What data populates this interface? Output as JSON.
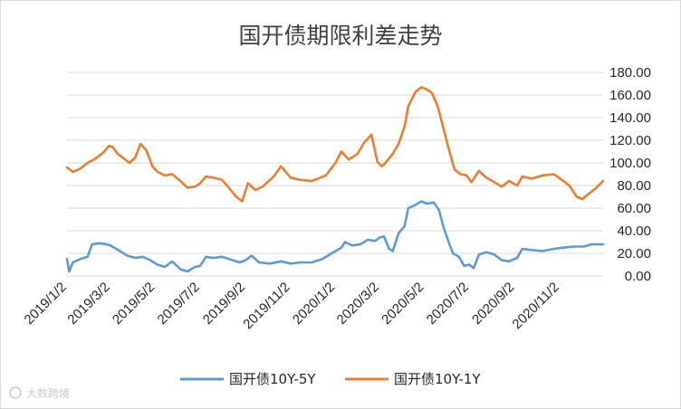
{
  "chart_data": {
    "type": "line",
    "title": "国开债期限利差走势",
    "xlabel": "",
    "ylabel": "",
    "ylim": [
      0,
      180
    ],
    "y_ticks": [
      "0.00",
      "20.00",
      "40.00",
      "60.00",
      "80.00",
      "100.00",
      "120.00",
      "140.00",
      "160.00",
      "180.00"
    ],
    "x_ticks": [
      "2019/1/2",
      "2019/3/2",
      "2019/5/2",
      "2019/7/2",
      "2019/9/2",
      "2019/11/2",
      "2020/1/2",
      "2020/3/2",
      "2020/5/2",
      "2020/7/2",
      "2020/9/2",
      "2020/11/2"
    ],
    "x_range": [
      "2019/1/2",
      "2020/12/31"
    ],
    "grid": true,
    "legend_position": "bottom",
    "series": [
      {
        "name": "国开债10Y-5Y",
        "color": "#5b9bd5",
        "points": [
          [
            "2019/1/2",
            15
          ],
          [
            "2019/1/5",
            4
          ],
          [
            "2019/1/10",
            12
          ],
          [
            "2019/1/20",
            15
          ],
          [
            "2019/1/30",
            17
          ],
          [
            "2019/2/5",
            28
          ],
          [
            "2019/2/15",
            29
          ],
          [
            "2019/2/25",
            28
          ],
          [
            "2019/3/2",
            27
          ],
          [
            "2019/3/15",
            22
          ],
          [
            "2019/3/25",
            18
          ],
          [
            "2019/4/5",
            16
          ],
          [
            "2019/4/15",
            17
          ],
          [
            "2019/4/25",
            14
          ],
          [
            "2019/5/5",
            10
          ],
          [
            "2019/5/15",
            8
          ],
          [
            "2019/5/25",
            13
          ],
          [
            "2019/6/5",
            6
          ],
          [
            "2019/6/15",
            4
          ],
          [
            "2019/6/25",
            8
          ],
          [
            "2019/7/2",
            9
          ],
          [
            "2019/7/10",
            17
          ],
          [
            "2019/7/20",
            16
          ],
          [
            "2019/8/1",
            17
          ],
          [
            "2019/8/15",
            14
          ],
          [
            "2019/8/25",
            12
          ],
          [
            "2019/9/2",
            14
          ],
          [
            "2019/9/10",
            18
          ],
          [
            "2019/9/20",
            12
          ],
          [
            "2019/10/5",
            11
          ],
          [
            "2019/10/20",
            13
          ],
          [
            "2019/11/2",
            11
          ],
          [
            "2019/11/15",
            12
          ],
          [
            "2019/12/1",
            12
          ],
          [
            "2019/12/15",
            15
          ],
          [
            "2020/1/2",
            22
          ],
          [
            "2020/1/10",
            25
          ],
          [
            "2020/1/15",
            30
          ],
          [
            "2020/1/25",
            27
          ],
          [
            "2020/2/5",
            28
          ],
          [
            "2020/2/15",
            32
          ],
          [
            "2020/2/25",
            31
          ],
          [
            "2020/3/2",
            34
          ],
          [
            "2020/3/8",
            35
          ],
          [
            "2020/3/15",
            24
          ],
          [
            "2020/3/20",
            22
          ],
          [
            "2020/3/28",
            38
          ],
          [
            "2020/4/5",
            44
          ],
          [
            "2020/4/10",
            60
          ],
          [
            "2020/4/20",
            63
          ],
          [
            "2020/4/28",
            66
          ],
          [
            "2020/5/5",
            64
          ],
          [
            "2020/5/15",
            65
          ],
          [
            "2020/5/22",
            58
          ],
          [
            "2020/5/28",
            43
          ],
          [
            "2020/6/5",
            28
          ],
          [
            "2020/6/10",
            20
          ],
          [
            "2020/6/18",
            17
          ],
          [
            "2020/6/25",
            9
          ],
          [
            "2020/7/2",
            10
          ],
          [
            "2020/7/8",
            7
          ],
          [
            "2020/7/15",
            19
          ],
          [
            "2020/7/25",
            21
          ],
          [
            "2020/8/5",
            19
          ],
          [
            "2020/8/15",
            14
          ],
          [
            "2020/8/25",
            13
          ],
          [
            "2020/9/5",
            16
          ],
          [
            "2020/9/12",
            24
          ],
          [
            "2020/9/25",
            23
          ],
          [
            "2020/10/10",
            22
          ],
          [
            "2020/10/25",
            24
          ],
          [
            "2020/11/5",
            25
          ],
          [
            "2020/11/20",
            26
          ],
          [
            "2020/12/5",
            26
          ],
          [
            "2020/12/15",
            28
          ],
          [
            "2020/12/31",
            28
          ]
        ]
      },
      {
        "name": "国开债10Y-1Y",
        "color": "#ed7d31",
        "points": [
          [
            "2019/1/2",
            96
          ],
          [
            "2019/1/10",
            92
          ],
          [
            "2019/1/20",
            95
          ],
          [
            "2019/1/30",
            100
          ],
          [
            "2019/2/10",
            104
          ],
          [
            "2019/2/20",
            109
          ],
          [
            "2019/2/28",
            115
          ],
          [
            "2019/3/5",
            114
          ],
          [
            "2019/3/12",
            108
          ],
          [
            "2019/3/20",
            104
          ],
          [
            "2019/3/28",
            100
          ],
          [
            "2019/4/5",
            105
          ],
          [
            "2019/4/12",
            117
          ],
          [
            "2019/4/20",
            111
          ],
          [
            "2019/4/28",
            97
          ],
          [
            "2019/5/5",
            92
          ],
          [
            "2019/5/15",
            89
          ],
          [
            "2019/5/25",
            90
          ],
          [
            "2019/6/5",
            84
          ],
          [
            "2019/6/15",
            78
          ],
          [
            "2019/6/25",
            79
          ],
          [
            "2019/7/2",
            82
          ],
          [
            "2019/7/10",
            88
          ],
          [
            "2019/7/20",
            87
          ],
          [
            "2019/8/1",
            85
          ],
          [
            "2019/8/10",
            78
          ],
          [
            "2019/8/20",
            70
          ],
          [
            "2019/8/28",
            66
          ],
          [
            "2019/9/5",
            82
          ],
          [
            "2019/9/15",
            76
          ],
          [
            "2019/9/25",
            79
          ],
          [
            "2019/10/10",
            88
          ],
          [
            "2019/10/20",
            97
          ],
          [
            "2019/11/2",
            87
          ],
          [
            "2019/11/15",
            85
          ],
          [
            "2019/12/1",
            84
          ],
          [
            "2019/12/20",
            89
          ],
          [
            "2020/1/2",
            100
          ],
          [
            "2020/1/10",
            110
          ],
          [
            "2020/1/20",
            103
          ],
          [
            "2020/2/1",
            108
          ],
          [
            "2020/2/10",
            118
          ],
          [
            "2020/2/20",
            125
          ],
          [
            "2020/2/28",
            101
          ],
          [
            "2020/3/5",
            97
          ],
          [
            "2020/3/10",
            100
          ],
          [
            "2020/3/20",
            108
          ],
          [
            "2020/3/28",
            117
          ],
          [
            "2020/4/5",
            132
          ],
          [
            "2020/4/10",
            150
          ],
          [
            "2020/4/20",
            163
          ],
          [
            "2020/4/28",
            167
          ],
          [
            "2020/5/5",
            165
          ],
          [
            "2020/5/12",
            162
          ],
          [
            "2020/5/20",
            150
          ],
          [
            "2020/5/28",
            130
          ],
          [
            "2020/6/5",
            110
          ],
          [
            "2020/6/12",
            94
          ],
          [
            "2020/6/20",
            90
          ],
          [
            "2020/6/28",
            89
          ],
          [
            "2020/7/5",
            83
          ],
          [
            "2020/7/15",
            93
          ],
          [
            "2020/7/25",
            87
          ],
          [
            "2020/8/5",
            83
          ],
          [
            "2020/8/15",
            79
          ],
          [
            "2020/8/25",
            84
          ],
          [
            "2020/9/5",
            80
          ],
          [
            "2020/9/12",
            88
          ],
          [
            "2020/9/25",
            86
          ],
          [
            "2020/10/10",
            89
          ],
          [
            "2020/10/25",
            90
          ],
          [
            "2020/11/5",
            85
          ],
          [
            "2020/11/15",
            80
          ],
          [
            "2020/11/25",
            70
          ],
          [
            "2020/12/3",
            68
          ],
          [
            "2020/12/10",
            72
          ],
          [
            "2020/12/20",
            77
          ],
          [
            "2020/12/31",
            84
          ]
        ]
      }
    ]
  },
  "watermark": {
    "text": "大数跨境"
  }
}
